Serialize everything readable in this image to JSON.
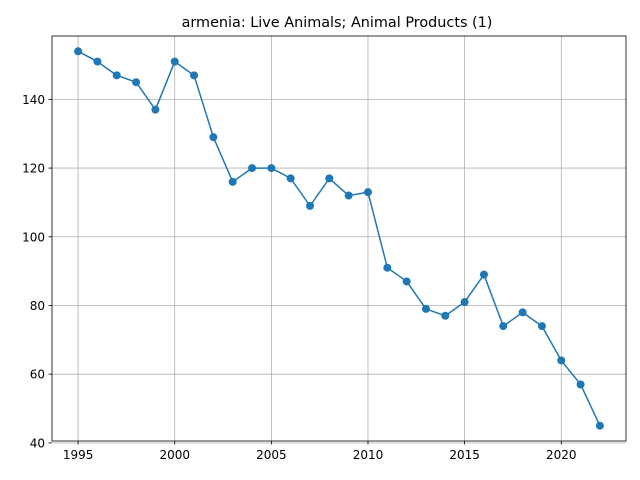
{
  "chart_data": {
    "type": "line",
    "title": "armenia: Live Animals; Animal Products (1)",
    "xlabel": "",
    "ylabel": "",
    "x": [
      1995,
      1996,
      1997,
      1998,
      1999,
      2000,
      2001,
      2002,
      2003,
      2004,
      2005,
      2006,
      2007,
      2008,
      2009,
      2010,
      2011,
      2012,
      2013,
      2014,
      2015,
      2016,
      2017,
      2018,
      2019,
      2020,
      2021,
      2022
    ],
    "series": [
      {
        "name": "",
        "values": [
          154,
          151,
          147,
          145,
          137,
          151,
          147,
          129,
          116,
          120,
          120,
          117,
          109,
          117,
          112,
          113,
          91,
          87,
          79,
          77,
          81,
          89,
          74,
          78,
          74,
          64,
          57,
          45
        ]
      }
    ],
    "xlim": [
      1993.65,
      2023.35
    ],
    "ylim": [
      40.55,
      158.45
    ],
    "xticks": [
      1995,
      2000,
      2005,
      2010,
      2015,
      2020
    ],
    "yticks": [
      40,
      60,
      80,
      100,
      120,
      140
    ],
    "grid": true,
    "line_color": "#1f77b4",
    "marker": "circle",
    "legend": "none"
  }
}
